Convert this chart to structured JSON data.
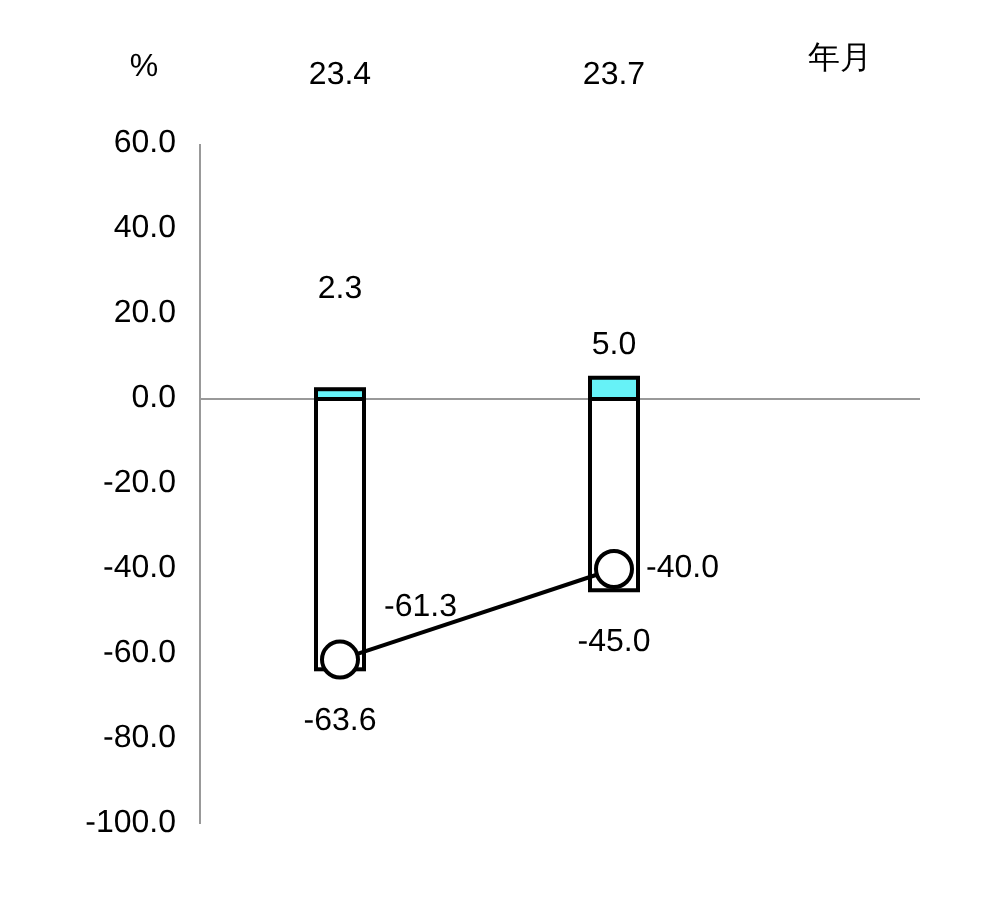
{
  "chart_data": {
    "type": "bar",
    "stacked": true,
    "xlabel": "年月",
    "ylabel": "%",
    "categories": [
      "23.4",
      "23.7"
    ],
    "series": [
      {
        "color": "#66f2f7",
        "values": [
          2.3,
          5.0
        ],
        "value_labels": [
          "2.3",
          "5.0"
        ]
      },
      {
        "color": "#ffffff",
        "values": [
          -63.6,
          -45.0
        ],
        "value_labels": [
          "-63.6",
          "-45.0"
        ]
      },
      {
        "type": "line",
        "color": "#000000",
        "marker": "circle",
        "values": [
          -61.3,
          -40.0
        ],
        "value_labels": [
          "-61.3",
          "-40.0"
        ]
      }
    ],
    "ylim": [
      -100,
      60
    ],
    "yticks": [
      {
        "value": 60,
        "label": "60.0"
      },
      {
        "value": 40,
        "label": "40.0"
      },
      {
        "value": 20,
        "label": "20.0"
      },
      {
        "value": 0,
        "label": "0.0"
      },
      {
        "value": -20,
        "label": "-20.0"
      },
      {
        "value": -40,
        "label": "-40.0"
      },
      {
        "value": -60,
        "label": "-60.0"
      },
      {
        "value": -80,
        "label": "-80.0"
      },
      {
        "value": -100,
        "label": "-100.0"
      }
    ],
    "ref_lines": [
      {
        "axis": "y",
        "value": 0,
        "color": "#999999"
      }
    ]
  }
}
